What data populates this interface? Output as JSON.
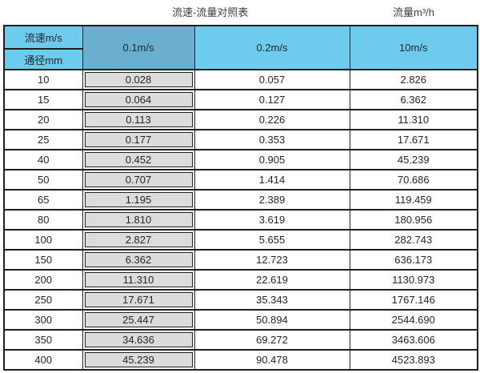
{
  "titles": {
    "main": "流速-流量对照表",
    "unit": "流量m³/h"
  },
  "table": {
    "corner": {
      "top": "流速m/s",
      "bottom": "通径mm"
    },
    "columns": [
      "0.1m/s",
      "0.2m/s",
      "10m/s"
    ],
    "rows": [
      {
        "dn": "10",
        "values": [
          "0.028",
          "0.057",
          "2.826"
        ]
      },
      {
        "dn": "15",
        "values": [
          "0.064",
          "0.127",
          "6.362"
        ]
      },
      {
        "dn": "20",
        "values": [
          "0.113",
          "0.226",
          "11.310"
        ]
      },
      {
        "dn": "25",
        "values": [
          "0.177",
          "0.353",
          "17.671"
        ]
      },
      {
        "dn": "40",
        "values": [
          "0.452",
          "0.905",
          "45.239"
        ]
      },
      {
        "dn": "50",
        "values": [
          "0.707",
          "1.414",
          "70.686"
        ]
      },
      {
        "dn": "65",
        "values": [
          "1.195",
          "2.389",
          "119.459"
        ]
      },
      {
        "dn": "80",
        "values": [
          "1.810",
          "3.619",
          "180.956"
        ]
      },
      {
        "dn": "100",
        "values": [
          "2.827",
          "5.655",
          "282.743"
        ]
      },
      {
        "dn": "150",
        "values": [
          "6.362",
          "12.723",
          "636.173"
        ]
      },
      {
        "dn": "200",
        "values": [
          "11.310",
          "22.619",
          "1130.973"
        ]
      },
      {
        "dn": "250",
        "values": [
          "17.671",
          "35.343",
          "1767.146"
        ]
      },
      {
        "dn": "300",
        "values": [
          "25.447",
          "50.894",
          "2544.690"
        ]
      },
      {
        "dn": "350",
        "values": [
          "34.636",
          "69.272",
          "3463.606"
        ]
      },
      {
        "dn": "400",
        "values": [
          "45.239",
          "90.478",
          "4523.893"
        ]
      }
    ]
  },
  "colors": {
    "header_blue": "#6dcbee",
    "highlight_header_blue": "#6aafd0",
    "highlight_cell_gray": "#dcdcdc",
    "border": "#1f1f1f",
    "text": "#262626"
  }
}
